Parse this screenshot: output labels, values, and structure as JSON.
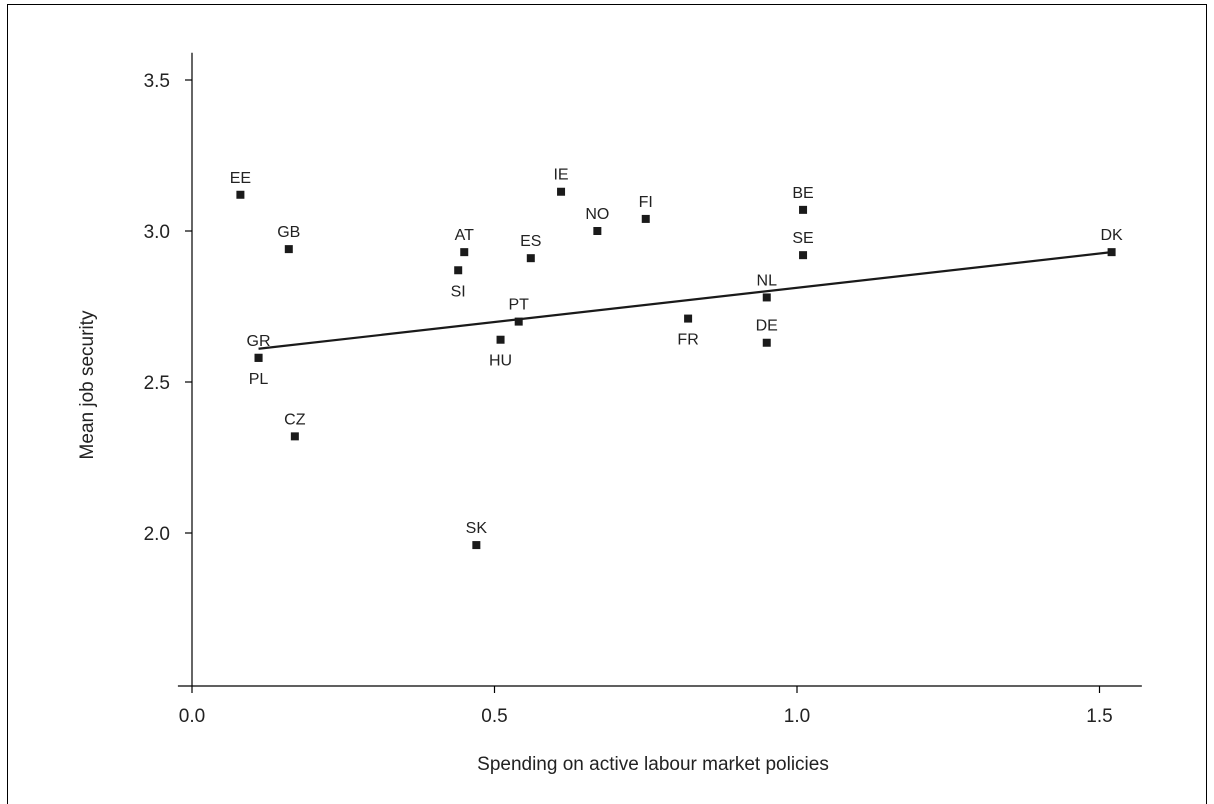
{
  "chart_data": {
    "type": "scatter",
    "xlabel": "Spending on active labour market policies",
    "ylabel": "Mean job security",
    "xlim": [
      -0.02,
      1.57
    ],
    "ylim": [
      1.5,
      3.6
    ],
    "xticks": [
      "0.0",
      "0.5",
      "1.0",
      "1.5"
    ],
    "xtick_values": [
      0.0,
      0.5,
      1.0,
      1.5
    ],
    "yticks": [
      "2.0",
      "2.5",
      "3.0",
      "3.5"
    ],
    "ytick_values": [
      2.0,
      2.5,
      3.0,
      3.5
    ],
    "grid": false,
    "points": [
      {
        "label": "EE",
        "x": 0.08,
        "y": 3.12,
        "label_pos": "above"
      },
      {
        "label": "GB",
        "x": 0.16,
        "y": 2.94,
        "label_pos": "above"
      },
      {
        "label": "GR",
        "x": 0.11,
        "y": 2.58,
        "label_pos": "above"
      },
      {
        "label": "PL",
        "x": 0.11,
        "y": 2.58,
        "label_pos": "below"
      },
      {
        "label": "CZ",
        "x": 0.17,
        "y": 2.32,
        "label_pos": "above"
      },
      {
        "label": "AT",
        "x": 0.45,
        "y": 2.93,
        "label_pos": "above"
      },
      {
        "label": "SI",
        "x": 0.44,
        "y": 2.87,
        "label_pos": "below"
      },
      {
        "label": "ES",
        "x": 0.56,
        "y": 2.91,
        "label_pos": "above"
      },
      {
        "label": "IE",
        "x": 0.61,
        "y": 3.13,
        "label_pos": "above"
      },
      {
        "label": "NO",
        "x": 0.67,
        "y": 3.0,
        "label_pos": "above"
      },
      {
        "label": "FI",
        "x": 0.75,
        "y": 3.04,
        "label_pos": "above"
      },
      {
        "label": "PT",
        "x": 0.54,
        "y": 2.7,
        "label_pos": "above"
      },
      {
        "label": "HU",
        "x": 0.51,
        "y": 2.64,
        "label_pos": "below"
      },
      {
        "label": "SK",
        "x": 0.47,
        "y": 1.96,
        "label_pos": "above"
      },
      {
        "label": "FR",
        "x": 0.82,
        "y": 2.71,
        "label_pos": "below"
      },
      {
        "label": "BE",
        "x": 1.01,
        "y": 3.07,
        "label_pos": "above"
      },
      {
        "label": "SE",
        "x": 1.01,
        "y": 2.92,
        "label_pos": "above"
      },
      {
        "label": "NL",
        "x": 0.95,
        "y": 2.78,
        "label_pos": "above"
      },
      {
        "label": "DE",
        "x": 0.95,
        "y": 2.63,
        "label_pos": "above"
      },
      {
        "label": "DK",
        "x": 1.52,
        "y": 2.93,
        "label_pos": "above"
      }
    ],
    "trendline": {
      "x": [
        0.11,
        1.52
      ],
      "y": [
        2.61,
        2.93
      ]
    },
    "marker_color": "#1a1a1a",
    "line_color": "#1a1a1a"
  }
}
